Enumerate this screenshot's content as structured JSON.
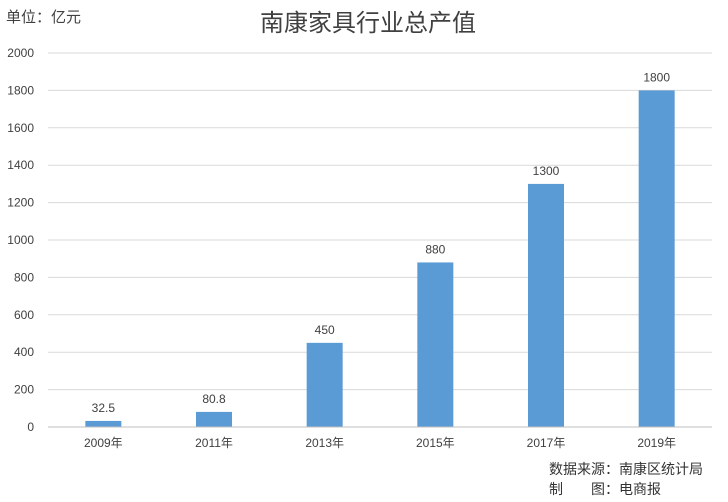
{
  "chart_data": {
    "type": "bar",
    "title": "南康家具行业总产值",
    "unit_label": "单位：亿元",
    "categories": [
      "2009年",
      "2011年",
      "2013年",
      "2015年",
      "2017年",
      "2019年"
    ],
    "values": [
      32.5,
      80.8,
      450,
      880,
      1300,
      1800
    ],
    "data_labels": [
      "32.5",
      "80.8",
      "450",
      "880",
      "1300",
      "1800"
    ],
    "ylim": [
      0,
      2000
    ],
    "yticks": [
      0,
      200,
      400,
      600,
      800,
      1000,
      1200,
      1400,
      1600,
      1800,
      2000
    ],
    "grid": true,
    "legend": "none",
    "bar_color": "#5b9bd5"
  },
  "footer": {
    "source": "数据来源：南康区统计局",
    "maker": "制　　图：电商报"
  }
}
